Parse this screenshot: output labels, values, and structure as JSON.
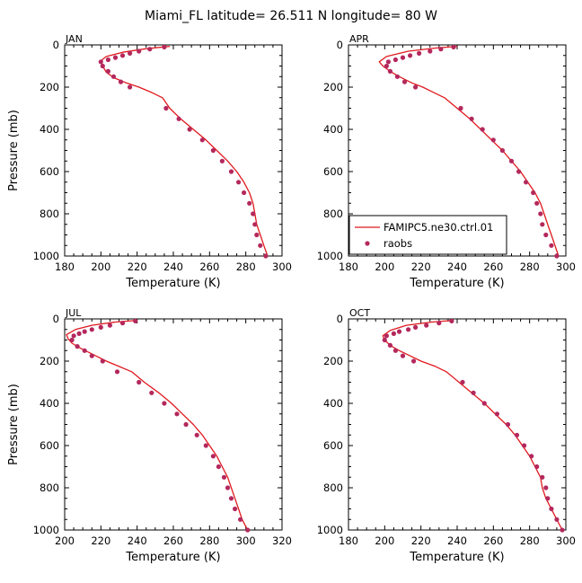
{
  "figure_title": "Miami_FL  latitude= 26.511 N longitude= 80 W",
  "colors": {
    "model": "#e0191e",
    "obs": "#b4285c",
    "axes": "#000000"
  },
  "legend": {
    "model_label": "FAMIPC5.ne30.ctrl.01",
    "obs_label": "raobs",
    "placement": "APR panel, bottom-left"
  },
  "chart_data": [
    {
      "type": "line",
      "title": "JAN",
      "xlabel": "Temperature (K)",
      "ylabel": "Pressure (mb)",
      "xlim": [
        180,
        300
      ],
      "ylim": [
        1000,
        0
      ],
      "xticks": [
        180,
        200,
        220,
        240,
        260,
        280,
        300
      ],
      "yticks": [
        0,
        200,
        400,
        600,
        800,
        1000
      ],
      "series": [
        {
          "name": "FAMIPC5.ne30.ctrl.01",
          "kind": "line",
          "points": [
            [
              238,
              7
            ],
            [
              225,
              18
            ],
            [
              212,
              35
            ],
            [
              203,
              55
            ],
            [
              200,
              75
            ],
            [
              201,
              100
            ],
            [
              203,
              130
            ],
            [
              207,
              155
            ],
            [
              214,
              180
            ],
            [
              221,
              200
            ],
            [
              228,
              225
            ],
            [
              234,
              250
            ],
            [
              238,
              300
            ],
            [
              244,
              350
            ],
            [
              251,
              400
            ],
            [
              258,
              450
            ],
            [
              264,
              500
            ],
            [
              270,
              550
            ],
            [
              275,
              600
            ],
            [
              279,
              650
            ],
            [
              282,
              700
            ],
            [
              284,
              750
            ],
            [
              285,
              800
            ],
            [
              286,
              850
            ],
            [
              288,
              900
            ],
            [
              290,
              950
            ],
            [
              292,
              1000
            ]
          ]
        },
        {
          "name": "raobs",
          "kind": "scatter",
          "points": [
            [
              235,
              10
            ],
            [
              227,
              20
            ],
            [
              221,
              30
            ],
            [
              216,
              40
            ],
            [
              212,
              50
            ],
            [
              208,
              60
            ],
            [
              204,
              70
            ],
            [
              200,
              80
            ],
            [
              201,
              100
            ],
            [
              204,
              125
            ],
            [
              207,
              150
            ],
            [
              211,
              175
            ],
            [
              216,
              200
            ],
            [
              236,
              300
            ],
            [
              243,
              350
            ],
            [
              249,
              400
            ],
            [
              256,
              450
            ],
            [
              262,
              500
            ],
            [
              267,
              550
            ],
            [
              272,
              600
            ],
            [
              276,
              650
            ],
            [
              279,
              700
            ],
            [
              282,
              750
            ],
            [
              284,
              800
            ],
            [
              285,
              850
            ],
            [
              286,
              900
            ],
            [
              288,
              950
            ],
            [
              291,
              1000
            ]
          ]
        }
      ]
    },
    {
      "type": "line",
      "title": "APR",
      "xlabel": "Temperature (K)",
      "ylabel": "",
      "xlim": [
        180,
        300
      ],
      "ylim": [
        1000,
        0
      ],
      "xticks": [
        180,
        200,
        220,
        240,
        260,
        280,
        300
      ],
      "yticks": [
        0,
        200,
        400,
        600,
        800,
        1000
      ],
      "series": [
        {
          "name": "FAMIPC5.ne30.ctrl.01",
          "kind": "line",
          "points": [
            [
              240,
              7
            ],
            [
              228,
              15
            ],
            [
              213,
              30
            ],
            [
              201,
              55
            ],
            [
              197,
              80
            ],
            [
              199,
              100
            ],
            [
              203,
              125
            ],
            [
              208,
              150
            ],
            [
              215,
              180
            ],
            [
              221,
              200
            ],
            [
              227,
              225
            ],
            [
              233,
              250
            ],
            [
              240,
              300
            ],
            [
              247,
              350
            ],
            [
              253,
              400
            ],
            [
              259,
              450
            ],
            [
              265,
              500
            ],
            [
              270,
              550
            ],
            [
              275,
              600
            ],
            [
              279,
              650
            ],
            [
              283,
              700
            ],
            [
              286,
              750
            ],
            [
              288,
              800
            ],
            [
              290,
              850
            ],
            [
              292,
              900
            ],
            [
              294,
              950
            ],
            [
              296,
              1000
            ]
          ]
        },
        {
          "name": "raobs",
          "kind": "scatter",
          "points": [
            [
              238,
              10
            ],
            [
              231,
              20
            ],
            [
              225,
              30
            ],
            [
              219,
              40
            ],
            [
              214,
              50
            ],
            [
              210,
              60
            ],
            [
              206,
              70
            ],
            [
              202,
              80
            ],
            [
              201,
              100
            ],
            [
              203,
              125
            ],
            [
              207,
              150
            ],
            [
              211,
              175
            ],
            [
              217,
              200
            ],
            [
              242,
              300
            ],
            [
              248,
              350
            ],
            [
              254,
              400
            ],
            [
              260,
              450
            ],
            [
              265,
              500
            ],
            [
              270,
              550
            ],
            [
              274,
              600
            ],
            [
              278,
              650
            ],
            [
              282,
              700
            ],
            [
              284,
              750
            ],
            [
              286,
              800
            ],
            [
              287,
              850
            ],
            [
              289,
              900
            ],
            [
              292,
              950
            ],
            [
              295,
              1000
            ]
          ]
        }
      ]
    },
    {
      "type": "line",
      "title": "JUL",
      "xlabel": "Temperature (K)",
      "ylabel": "Pressure (mb)",
      "xlim": [
        200,
        320
      ],
      "ylim": [
        1000,
        0
      ],
      "xticks": [
        200,
        220,
        240,
        260,
        280,
        300,
        320
      ],
      "yticks": [
        0,
        200,
        400,
        600,
        800,
        1000
      ],
      "series": [
        {
          "name": "FAMIPC5.ne30.ctrl.01",
          "kind": "line",
          "points": [
            [
              240,
              7
            ],
            [
              228,
              15
            ],
            [
              215,
              30
            ],
            [
              206,
              50
            ],
            [
              201,
              75
            ],
            [
              202,
              95
            ],
            [
              204,
              115
            ],
            [
              209,
              140
            ],
            [
              216,
              170
            ],
            [
              223,
              200
            ],
            [
              230,
              225
            ],
            [
              237,
              250
            ],
            [
              244,
              300
            ],
            [
              252,
              350
            ],
            [
              259,
              400
            ],
            [
              265,
              450
            ],
            [
              271,
              500
            ],
            [
              276,
              550
            ],
            [
              280,
              600
            ],
            [
              284,
              650
            ],
            [
              287,
              700
            ],
            [
              290,
              750
            ],
            [
              292,
              800
            ],
            [
              294,
              850
            ],
            [
              296,
              900
            ],
            [
              298,
              950
            ],
            [
              301,
              1000
            ]
          ]
        },
        {
          "name": "raobs",
          "kind": "scatter",
          "points": [
            [
              239,
              10
            ],
            [
              232,
              20
            ],
            [
              225,
              30
            ],
            [
              220,
              40
            ],
            [
              215,
              50
            ],
            [
              211,
              60
            ],
            [
              208,
              70
            ],
            [
              205,
              80
            ],
            [
              204,
              100
            ],
            [
              207,
              130
            ],
            [
              211,
              150
            ],
            [
              215,
              175
            ],
            [
              221,
              200
            ],
            [
              229,
              250
            ],
            [
              241,
              300
            ],
            [
              248,
              350
            ],
            [
              255,
              400
            ],
            [
              262,
              450
            ],
            [
              267,
              500
            ],
            [
              273,
              550
            ],
            [
              278,
              600
            ],
            [
              282,
              650
            ],
            [
              285,
              700
            ],
            [
              288,
              750
            ],
            [
              290,
              800
            ],
            [
              292,
              850
            ],
            [
              294,
              900
            ],
            [
              297,
              950
            ],
            [
              301,
              1000
            ]
          ]
        }
      ]
    },
    {
      "type": "line",
      "title": "OCT",
      "xlabel": "Temperature (K)",
      "ylabel": "",
      "xlim": [
        180,
        300
      ],
      "ylim": [
        1000,
        0
      ],
      "xticks": [
        180,
        200,
        220,
        240,
        260,
        280,
        300
      ],
      "yticks": [
        0,
        200,
        400,
        600,
        800,
        1000
      ],
      "series": [
        {
          "name": "FAMIPC5.ne30.ctrl.01",
          "kind": "line",
          "points": [
            [
              238,
              7
            ],
            [
              226,
              15
            ],
            [
              212,
              30
            ],
            [
              203,
              55
            ],
            [
              199,
              80
            ],
            [
              200,
              100
            ],
            [
              203,
              125
            ],
            [
              208,
              150
            ],
            [
              214,
              175
            ],
            [
              220,
              200
            ],
            [
              228,
              225
            ],
            [
              234,
              250
            ],
            [
              241,
              300
            ],
            [
              248,
              350
            ],
            [
              255,
              400
            ],
            [
              261,
              450
            ],
            [
              267,
              500
            ],
            [
              272,
              550
            ],
            [
              276,
              600
            ],
            [
              280,
              650
            ],
            [
              283,
              700
            ],
            [
              286,
              750
            ],
            [
              287,
              800
            ],
            [
              289,
              850
            ],
            [
              292,
              900
            ],
            [
              295,
              950
            ],
            [
              298,
              1000
            ]
          ]
        },
        {
          "name": "raobs",
          "kind": "scatter",
          "points": [
            [
              237,
              10
            ],
            [
              230,
              20
            ],
            [
              223,
              30
            ],
            [
              217,
              40
            ],
            [
              213,
              50
            ],
            [
              208,
              60
            ],
            [
              205,
              70
            ],
            [
              201,
              80
            ],
            [
              200,
              100
            ],
            [
              203,
              125
            ],
            [
              206,
              150
            ],
            [
              210,
              175
            ],
            [
              216,
              200
            ],
            [
              243,
              300
            ],
            [
              249,
              350
            ],
            [
              255,
              400
            ],
            [
              262,
              450
            ],
            [
              268,
              500
            ],
            [
              273,
              550
            ],
            [
              277,
              600
            ],
            [
              281,
              650
            ],
            [
              284,
              700
            ],
            [
              287,
              750
            ],
            [
              289,
              800
            ],
            [
              290,
              850
            ],
            [
              292,
              900
            ],
            [
              295,
              950
            ],
            [
              298,
              1000
            ]
          ]
        }
      ]
    }
  ]
}
